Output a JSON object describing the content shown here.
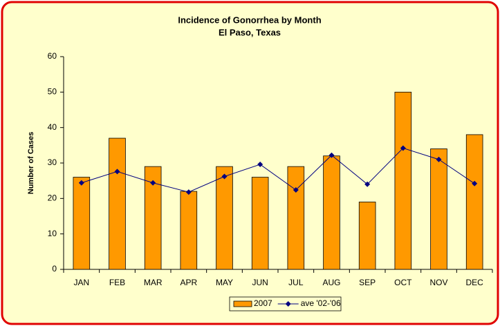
{
  "chart_data": {
    "type": "bar",
    "title": "Incidence of Gonorrhea by Month",
    "subtitle": "El Paso, Texas",
    "y_label": "Number of Cases",
    "categories": [
      "JAN",
      "FEB",
      "MAR",
      "APR",
      "MAY",
      "JUN",
      "JUL",
      "AUG",
      "SEP",
      "OCT",
      "NOV",
      "DEC"
    ],
    "series": [
      {
        "name": "2007",
        "type": "bar",
        "color": "#ff9900",
        "values": [
          26,
          37,
          29,
          22,
          29,
          26,
          29,
          32,
          19,
          50,
          34,
          38
        ]
      },
      {
        "name": "ave '02-'06",
        "type": "line",
        "color": "#000080",
        "values": [
          24.4,
          27.6,
          24.4,
          21.8,
          26.2,
          29.6,
          22.4,
          32.2,
          24,
          34.2,
          31,
          24.2
        ]
      }
    ],
    "ylim": [
      0,
      60
    ],
    "yticks": [
      0,
      10,
      20,
      30,
      40,
      50,
      60
    ],
    "legend": "bottom"
  }
}
